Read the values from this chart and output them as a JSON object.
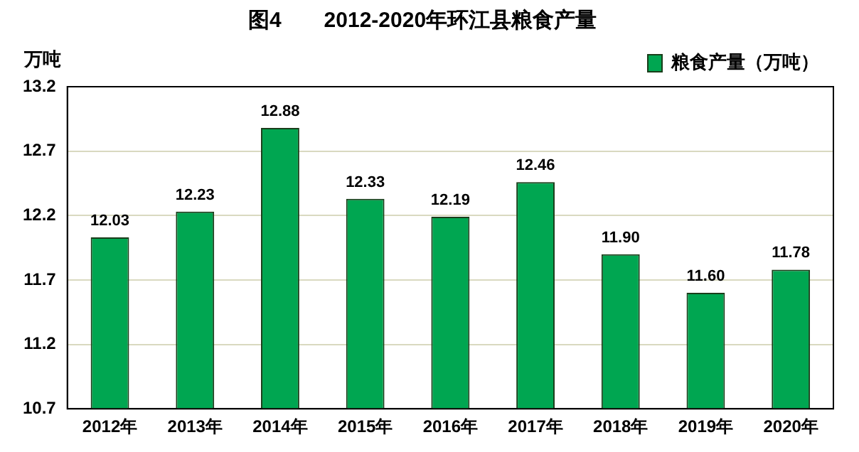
{
  "chart_data": {
    "type": "bar",
    "title": "图4　　2012-2020年环江县粮食产量",
    "ylabel": "万吨",
    "categories": [
      "2012年",
      "2013年",
      "2014年",
      "2015年",
      "2016年",
      "2017年",
      "2018年",
      "2019年",
      "2020年"
    ],
    "series": [
      {
        "name": "粮食产量（万吨）",
        "color": "#00a651",
        "values": [
          12.03,
          12.23,
          12.88,
          12.33,
          12.19,
          12.46,
          11.9,
          11.6,
          11.78
        ],
        "value_labels": [
          "12.03",
          "12.23",
          "12.88",
          "12.33",
          "12.19",
          "12.46",
          "11.90",
          "11.60",
          "11.78"
        ]
      }
    ],
    "ylim": [
      10.7,
      13.2
    ],
    "yticks": [
      10.7,
      11.2,
      11.7,
      12.2,
      12.7,
      13.2
    ],
    "grid": "y",
    "legend": "top right"
  }
}
